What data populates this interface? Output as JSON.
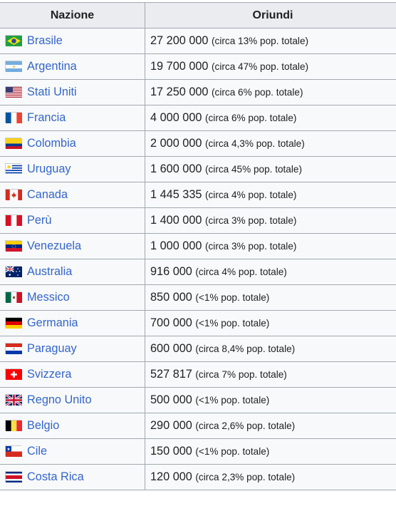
{
  "table": {
    "headers": [
      "Nazione",
      "Oriundi"
    ],
    "rows": [
      {
        "country": "Brasile",
        "flag": "brazil",
        "value": "27 200 000",
        "note": "(circa 13% pop. totale)"
      },
      {
        "country": "Argentina",
        "flag": "argentina",
        "value": "19 700 000",
        "note": "(circa 47% pop. totale)"
      },
      {
        "country": "Stati Uniti",
        "flag": "usa",
        "value": "17 250 000",
        "note": "(circa 6% pop. totale)"
      },
      {
        "country": "Francia",
        "flag": "france",
        "value": "4 000 000",
        "note": "(circa 6% pop. totale)"
      },
      {
        "country": "Colombia",
        "flag": "colombia",
        "value": "2 000 000",
        "note": "(circa 4,3% pop. totale)"
      },
      {
        "country": "Uruguay",
        "flag": "uruguay",
        "value": "1 600 000",
        "note": "(circa 45% pop. totale)"
      },
      {
        "country": "Canada",
        "flag": "canada",
        "value": "1 445 335",
        "note": "(circa 4% pop. totale)"
      },
      {
        "country": "Perù",
        "flag": "peru",
        "value": "1 400 000",
        "note": "(circa 3% pop. totale)"
      },
      {
        "country": "Venezuela",
        "flag": "venezuela",
        "value": "1 000 000",
        "note": "(circa 3% pop. totale)"
      },
      {
        "country": "Australia",
        "flag": "australia",
        "value": "916 000",
        "note": "(circa 4% pop. totale)"
      },
      {
        "country": "Messico",
        "flag": "mexico",
        "value": "850 000",
        "note": "(<1% pop. totale)"
      },
      {
        "country": "Germania",
        "flag": "germany",
        "value": "700 000",
        "note": "(<1% pop. totale)"
      },
      {
        "country": "Paraguay",
        "flag": "paraguay",
        "value": "600 000",
        "note": "(circa 8,4% pop. totale)"
      },
      {
        "country": "Svizzera",
        "flag": "switzerland",
        "value": "527 817",
        "note": "(circa 7% pop. totale)"
      },
      {
        "country": "Regno Unito",
        "flag": "uk",
        "value": "500 000",
        "note": "(<1% pop. totale)"
      },
      {
        "country": "Belgio",
        "flag": "belgium",
        "value": "290 000",
        "note": "(circa 2,6% pop. totale)"
      },
      {
        "country": "Cile",
        "flag": "chile",
        "value": "150 000",
        "note": "(<1% pop. totale)"
      },
      {
        "country": "Costa Rica",
        "flag": "costa-rica",
        "value": "120 000",
        "note": "(circa 2,3% pop. totale)"
      }
    ]
  }
}
